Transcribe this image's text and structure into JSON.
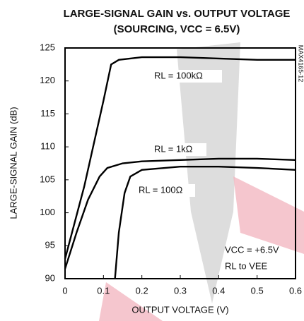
{
  "chart_data": {
    "type": "line",
    "title": [
      "LARGE-SIGNAL GAIN vs. OUTPUT VOLTAGE",
      "(SOURCING, VCC = 6.5V)"
    ],
    "x_label": "OUTPUT VOLTAGE (V)",
    "y_label": "LARGE-SIGNAL GAIN (dB)",
    "xlim": [
      0,
      0.6
    ],
    "xticks": [
      0,
      0.1,
      0.2,
      0.3,
      0.4,
      0.5,
      0.6
    ],
    "ylim": [
      90,
      125
    ],
    "yticks": [
      90,
      95,
      100,
      105,
      110,
      115,
      120,
      125
    ],
    "series": [
      {
        "name": "RL = 100kΩ",
        "color": "#000000",
        "x": [
          0,
          0.05,
          0.1,
          0.12,
          0.14,
          0.2,
          0.3,
          0.4,
          0.5,
          0.6
        ],
        "values": [
          93,
          104,
          117,
          122.5,
          123.2,
          123.6,
          123.6,
          123.4,
          123.2,
          123.2
        ]
      },
      {
        "name": "RL = 1kΩ",
        "color": "#000000",
        "x": [
          0,
          0.03,
          0.06,
          0.09,
          0.11,
          0.15,
          0.2,
          0.3,
          0.4,
          0.5,
          0.6
        ],
        "values": [
          91.5,
          97,
          102,
          105.5,
          106.8,
          107.5,
          107.8,
          108,
          108.2,
          108.2,
          108
        ]
      },
      {
        "name": "RL = 100Ω",
        "color": "#000000",
        "x": [
          0.13,
          0.14,
          0.155,
          0.17,
          0.2,
          0.3,
          0.4,
          0.5,
          0.6
        ],
        "values": [
          90,
          97,
          103,
          105.5,
          106.5,
          107,
          107,
          106.8,
          106.5
        ]
      }
    ],
    "annotations": [
      "VCC = +6.5V",
      "RL to VEE"
    ],
    "watermark": "MAX4165-12"
  }
}
